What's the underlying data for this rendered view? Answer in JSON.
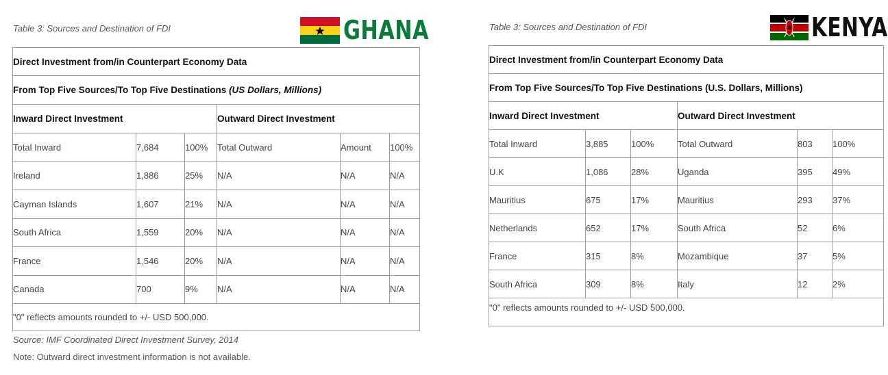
{
  "ghana": {
    "caption": "Table 3: Sources and Destination of FDI",
    "country_label": "GHANA",
    "flag_colors": {
      "red": "#ce1126",
      "yellow": "#fcd116",
      "green": "#006b3f",
      "star": "#000000"
    },
    "title": "Direct Investment from/in Counterpart Economy Data",
    "subtitle": "From Top Five Sources/To Top Five Destinations",
    "subtitle_units": "(US Dollars, Millions)",
    "inward_header": "Inward Direct Investment",
    "outward_header": "Outward Direct Investment",
    "rows": [
      {
        "in_name": "Total Inward",
        "in_val": "7,684",
        "in_pct": "100%",
        "out_name": "Total Outward",
        "out_val": "Amount",
        "out_pct": "100%"
      },
      {
        "in_name": "Ireland",
        "in_val": "1,886",
        "in_pct": "25%",
        "out_name": "N/A",
        "out_val": "N/A",
        "out_pct": "N/A"
      },
      {
        "in_name": "Cayman Islands",
        "in_val": "1,607",
        "in_pct": "21%",
        "out_name": "N/A",
        "out_val": "N/A",
        "out_pct": "N/A"
      },
      {
        "in_name": "South Africa",
        "in_val": "1,559",
        "in_pct": "20%",
        "out_name": "N/A",
        "out_val": "N/A",
        "out_pct": "N/A"
      },
      {
        "in_name": "France",
        "in_val": "1,546",
        "in_pct": "20%",
        "out_name": "N/A",
        "out_val": "N/A",
        "out_pct": "N/A"
      },
      {
        "in_name": "Canada",
        "in_val": "700",
        "in_pct": "9%",
        "out_name": "N/A",
        "out_val": "N/A",
        "out_pct": "N/A"
      }
    ],
    "note": "\"0\" reflects amounts rounded to +/- USD 500,000.",
    "source": "Source: IMF Coordinated Direct Investment Survey, 2014",
    "footnote": "Note: Outward direct investment information is not available."
  },
  "kenya": {
    "caption": "Table 3: Sources and Destination of FDI",
    "country_label": "KENYA",
    "flag_colors": {
      "black": "#000000",
      "white": "#ffffff",
      "red": "#bb0000",
      "green": "#006600"
    },
    "title": "Direct Investment from/in Counterpart Economy Data",
    "subtitle": "From Top Five Sources/To Top Five Destinations (U.S. Dollars, Millions)",
    "inward_header": "Inward Direct Investment",
    "outward_header": "Outward Direct Investment",
    "rows": [
      {
        "in_name": "Total Inward",
        "in_val": "3,885",
        "in_pct": "100%",
        "out_name": "Total Outward",
        "out_val": "803",
        "out_pct": "100%"
      },
      {
        "in_name": "U.K",
        "in_val": "1,086",
        "in_pct": "28%",
        "out_name": "Uganda",
        "out_val": "395",
        "out_pct": "49%"
      },
      {
        "in_name": "Mauritius",
        "in_val": "675",
        "in_pct": "17%",
        "out_name": "Mauritius",
        "out_val": "293",
        "out_pct": "37%"
      },
      {
        "in_name": "Netherlands",
        "in_val": "652",
        "in_pct": "17%",
        "out_name": "South Africa",
        "out_val": "52",
        "out_pct": "6%"
      },
      {
        "in_name": "France",
        "in_val": "315",
        "in_pct": "8%",
        "out_name": "Mozambique",
        "out_val": "37",
        "out_pct": "5%"
      },
      {
        "in_name": "South Africa",
        "in_val": "309",
        "in_pct": "8%",
        "out_name": "Italy",
        "out_val": "12",
        "out_pct": "2%"
      }
    ],
    "note": "\"0\" reflects amounts rounded to +/- USD 500,000."
  }
}
